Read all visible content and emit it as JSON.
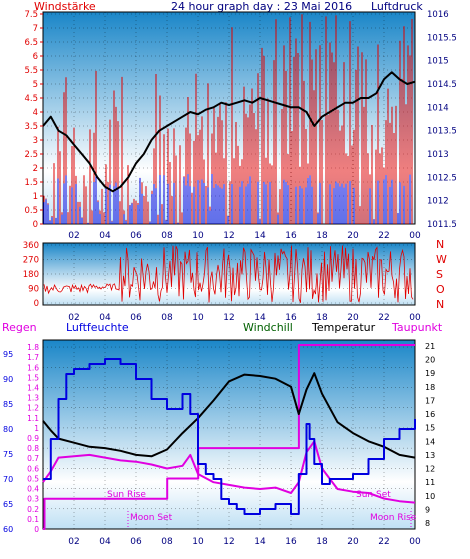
{
  "header": {
    "left": "Windstärke",
    "title": "24 hour graph day : 23 Mai 2016",
    "right": "Luftdruck"
  },
  "colors": {
    "red": "#e00000",
    "blue": "#0000e0",
    "black": "#000000",
    "magenta": "#e000e0",
    "darkgreen": "#006000",
    "navy": "#000080",
    "gradient_top": "#1a86c8",
    "gradient_mid": "#ffffff"
  },
  "chart_data": [
    {
      "type": "line",
      "title": "24 hour graph day : 23 Mai 2016",
      "x_ticks": [
        "02",
        "04",
        "06",
        "08",
        "10",
        "12",
        "14",
        "16",
        "18",
        "20",
        "22",
        "00"
      ],
      "y_left_label": "Windstärke",
      "y_left_ticks": [
        "0",
        "0.5",
        "1",
        "1.5",
        "2",
        "2.5",
        "3",
        "3.5",
        "4",
        "4.5",
        "5",
        "5.5",
        "6",
        "6.5",
        "7",
        "7.5"
      ],
      "y_left_range": [
        0,
        7.5
      ],
      "y_right_label": "Luftdruck",
      "y_right_ticks": [
        "1011.5",
        "1012",
        "1012.5",
        "1013",
        "1013.5",
        "1014",
        "1014.5",
        "1015",
        "1015.5",
        "1016"
      ],
      "y_right_range": [
        1011.5,
        1016
      ],
      "series": [
        {
          "axis": "right",
          "color": "#000000",
          "x": [
            0,
            0.5,
            1,
            1.5,
            2,
            2.5,
            3,
            3.5,
            4,
            4.5,
            5,
            5.5,
            6,
            6.5,
            7,
            7.5,
            8,
            8.5,
            9,
            9.5,
            10,
            10.5,
            11,
            11.5,
            12,
            12.5,
            13,
            13.5,
            14,
            14.5,
            15,
            15.5,
            16,
            16.5,
            17,
            17.5,
            18,
            18.5,
            19,
            19.5,
            20,
            20.5,
            21,
            21.5,
            22,
            22.5,
            23,
            23.5,
            24
          ],
          "values": [
            1013.6,
            1013.8,
            1013.5,
            1013.4,
            1013.2,
            1013.0,
            1012.8,
            1012.5,
            1012.3,
            1012.2,
            1012.3,
            1012.5,
            1012.8,
            1013.0,
            1013.3,
            1013.5,
            1013.6,
            1013.7,
            1013.8,
            1013.9,
            1013.85,
            1013.95,
            1014.0,
            1014.1,
            1014.05,
            1014.1,
            1014.15,
            1014.1,
            1014.2,
            1014.15,
            1014.1,
            1014.05,
            1014.0,
            1014.0,
            1013.9,
            1013.6,
            1013.8,
            1013.9,
            1014.0,
            1014.1,
            1014.1,
            1014.2,
            1014.2,
            1014.3,
            1014.6,
            1014.75,
            1014.6,
            1014.5,
            1014.55
          ]
        }
      ]
    },
    {
      "type": "line",
      "y_ticks": [
        "0",
        "90",
        "180",
        "270",
        "360"
      ],
      "y_range": [
        0,
        360
      ],
      "compass_labels": [
        "N",
        "W",
        "S",
        "O",
        "N"
      ],
      "x_ticks": [
        "02",
        "04",
        "06",
        "08",
        "10",
        "12",
        "14",
        "16",
        "18",
        "20",
        "22",
        "00"
      ]
    },
    {
      "type": "line",
      "labels": {
        "regen": "Regen",
        "luftfeuchte": "Luftfeuchte",
        "windchill": "Windchill",
        "temperatur": "Temperatur",
        "taupunkt": "Taupunkt"
      },
      "annotations": [
        "Sun Rise",
        "Moon Set",
        "Sun Set",
        "Moon Rise"
      ],
      "regen_ticks": [
        "0",
        "0.1",
        "0.2",
        "0.3",
        "0.4",
        "0.5",
        "0.6",
        "0.7",
        "0.8",
        "0.9",
        "1",
        "1.1",
        "1.2",
        "1.3",
        "1.4",
        "1.5",
        "1.6",
        "1.7",
        "1.8"
      ],
      "regen_range": [
        0,
        1.85
      ],
      "humidity_ticks": [
        "60",
        "65",
        "70",
        "75",
        "80",
        "85",
        "90",
        "95"
      ],
      "humidity_range": [
        60,
        95
      ],
      "temp_ticks": [
        "8",
        "9",
        "10",
        "11",
        "12",
        "13",
        "14",
        "15",
        "16",
        "17",
        "18",
        "19",
        "20",
        "21"
      ],
      "temp_range": [
        8,
        21
      ],
      "x_ticks": [
        "02",
        "04",
        "06",
        "08",
        "10",
        "12",
        "14",
        "16",
        "18",
        "20",
        "22",
        "00"
      ],
      "series": [
        {
          "name": "Luftfeuchte",
          "color": "#0000e0",
          "axis": "humidity",
          "x": [
            0,
            0.5,
            1,
            1.5,
            2,
            3,
            4,
            5,
            6,
            7,
            8,
            9,
            9.5,
            10,
            10.5,
            11,
            11.5,
            12,
            12.5,
            13,
            14,
            15,
            16,
            16.5,
            17,
            17.2,
            17.5,
            18,
            18.5,
            19,
            20,
            21,
            22,
            23,
            24
          ],
          "values": [
            70,
            78,
            86,
            91,
            92,
            93,
            94,
            93,
            90,
            86,
            84,
            87,
            83,
            73,
            71,
            70,
            66,
            65,
            64,
            63,
            64,
            65,
            63,
            71,
            81,
            78,
            73,
            69,
            70,
            70,
            71,
            74,
            78,
            80,
            82
          ]
        },
        {
          "name": "Temperatur",
          "color": "#000000",
          "axis": "temp",
          "x": [
            0,
            0.5,
            1,
            2,
            3,
            4,
            5,
            6,
            7,
            8,
            9,
            10,
            11,
            12,
            13,
            14,
            15,
            16,
            16.5,
            17,
            17.5,
            18,
            19,
            20,
            21,
            22,
            23,
            24
          ],
          "values": [
            15.5,
            14.8,
            14.2,
            13.9,
            13.6,
            13.5,
            13.3,
            13.0,
            12.9,
            13.4,
            14.6,
            15.7,
            17.0,
            18.4,
            18.9,
            18.8,
            18.6,
            18.0,
            16.0,
            17.8,
            19.0,
            17.5,
            15.4,
            14.6,
            14.0,
            13.6,
            13.0,
            12.8
          ]
        },
        {
          "name": "Taupunkt",
          "color": "#e000e0",
          "axis": "temp",
          "x": [
            0,
            0.5,
            1,
            2,
            3,
            4,
            5,
            6,
            7,
            8,
            9,
            9.5,
            10,
            11,
            12,
            13,
            14,
            15,
            16,
            16.5,
            17,
            17.5,
            18,
            19,
            20,
            21,
            22,
            23,
            24
          ],
          "values": [
            11.0,
            11.8,
            12.8,
            12.9,
            13.0,
            12.8,
            12.6,
            12.5,
            12.3,
            12.0,
            12.2,
            13.0,
            11.6,
            11.0,
            10.8,
            10.6,
            10.5,
            10.6,
            10.2,
            11.0,
            13.2,
            14.0,
            12.0,
            10.5,
            10.3,
            10.2,
            9.8,
            9.6,
            9.5
          ]
        },
        {
          "name": "Regen",
          "color": "#e000e0",
          "axis": "regen",
          "x": [
            0,
            0.1,
            0.2,
            8,
            8.01,
            10,
            10.01,
            16.5,
            16.51,
            24
          ],
          "values": [
            0,
            0.3,
            0.3,
            0.3,
            0.5,
            0.5,
            0.8,
            0.8,
            1.82,
            1.82
          ]
        }
      ]
    }
  ]
}
